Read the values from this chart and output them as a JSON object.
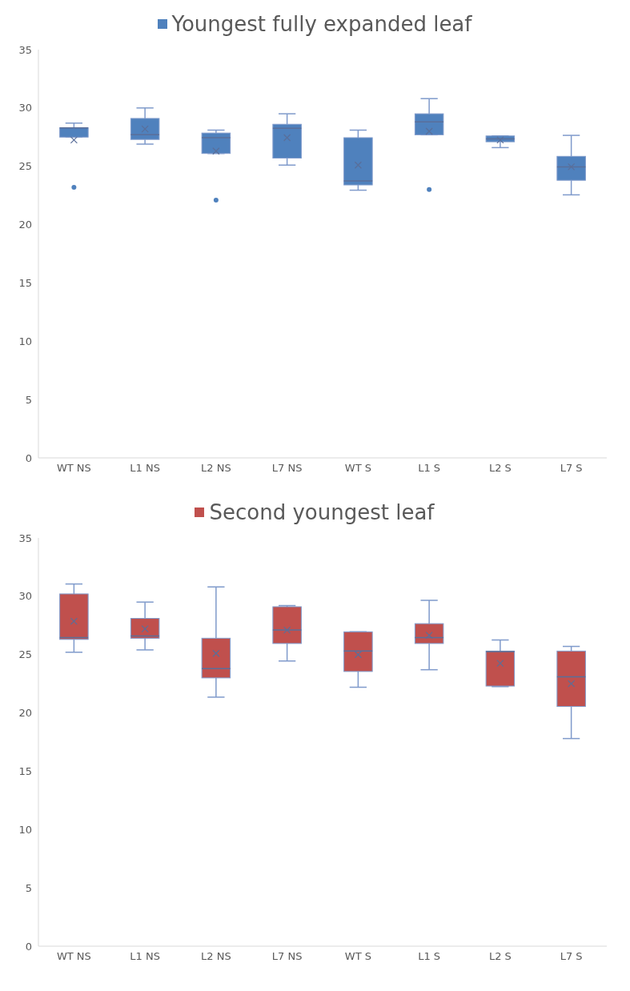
{
  "chart_data": [
    {
      "type": "box",
      "categories": [
        "WT NS",
        "L1 NS",
        "L2 NS",
        "L7 NS",
        "WT S",
        "L1 S",
        "L2 S",
        "L7 S"
      ],
      "ylim": [
        0,
        35
      ],
      "yticks": [
        0,
        5,
        10,
        15,
        20,
        25,
        30,
        35
      ],
      "legend": "top",
      "series": [
        {
          "name": "Youngest fully expanded leaf",
          "color": "#4f81bd",
          "boxes": [
            {
              "low": 27.5,
              "q1": 27.5,
              "median": 28.3,
              "q3": 28.3,
              "high": 28.7,
              "mean": 27.25,
              "outliers": [
                23.2
              ]
            },
            {
              "low": 26.9,
              "q1": 27.3,
              "median": 27.7,
              "q3": 29.1,
              "high": 30.0,
              "mean": 28.2
            },
            {
              "low": 26.1,
              "q1": 26.1,
              "median": 27.45,
              "q3": 27.85,
              "high": 28.1,
              "mean": 26.3,
              "outliers": [
                22.1
              ]
            },
            {
              "low": 25.1,
              "q1": 25.7,
              "median": 28.25,
              "q3": 28.6,
              "high": 29.5,
              "mean": 27.45
            },
            {
              "low": 22.95,
              "q1": 23.4,
              "median": 23.75,
              "q3": 27.45,
              "high": 28.1,
              "mean": 25.1
            },
            {
              "low": 27.7,
              "q1": 27.7,
              "median": 28.8,
              "q3": 29.5,
              "high": 30.8,
              "mean": 28.0,
              "outliers": [
                23.0
              ]
            },
            {
              "low": 26.6,
              "q1": 27.1,
              "median": 27.35,
              "q3": 27.6,
              "high": 27.6,
              "mean": 27.25
            },
            {
              "low": 22.55,
              "q1": 23.8,
              "median": 24.95,
              "q3": 25.85,
              "high": 27.65,
              "mean": 24.95
            }
          ]
        }
      ]
    },
    {
      "type": "box",
      "categories": [
        "WT NS",
        "L1 NS",
        "L2 NS",
        "L7 NS",
        "WT S",
        "L1 S",
        "L2 S",
        "L7 S"
      ],
      "ylim": [
        0,
        35
      ],
      "yticks": [
        0,
        5,
        10,
        15,
        20,
        25,
        30,
        35
      ],
      "legend": "top",
      "series": [
        {
          "name": "Second youngest leaf",
          "color": "#c0504d",
          "boxes": [
            {
              "low": 25.2,
              "q1": 26.3,
              "median": 26.45,
              "q3": 30.2,
              "high": 31.05,
              "mean": 27.85
            },
            {
              "low": 25.4,
              "q1": 26.4,
              "median": 26.6,
              "q3": 28.1,
              "high": 29.5,
              "mean": 27.2
            },
            {
              "low": 21.35,
              "q1": 23.0,
              "median": 23.8,
              "q3": 26.4,
              "high": 30.8,
              "mean": 25.1
            },
            {
              "low": 24.45,
              "q1": 25.95,
              "median": 27.1,
              "q3": 29.1,
              "high": 29.2,
              "mean": 27.1
            },
            {
              "low": 22.2,
              "q1": 23.55,
              "median": 25.3,
              "q3": 26.95,
              "high": 26.95,
              "mean": 25.0
            },
            {
              "low": 23.7,
              "q1": 25.95,
              "median": 26.45,
              "q3": 27.65,
              "high": 29.65,
              "mean": 26.65
            },
            {
              "low": 22.25,
              "q1": 22.3,
              "median": 25.25,
              "q3": 25.3,
              "high": 26.25,
              "mean": 24.25
            },
            {
              "low": 17.8,
              "q1": 20.55,
              "median": 23.1,
              "q3": 25.3,
              "high": 25.7,
              "mean": 22.5
            }
          ]
        }
      ]
    }
  ]
}
